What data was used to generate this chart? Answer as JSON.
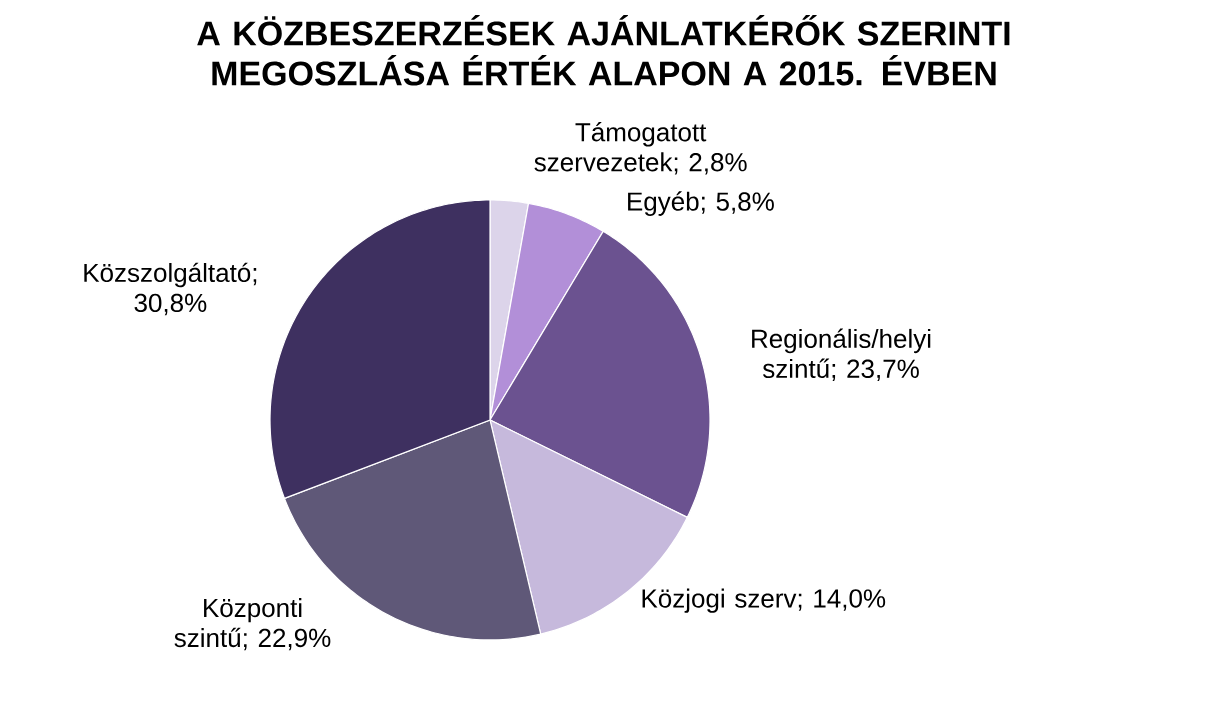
{
  "chart_data": {
    "type": "pie",
    "title": "A KÖZBESZERZÉSEK AJÁNLATKÉRŐK SZERINTI MEGOSZLÁSA ÉRTÉK ALAPON A 2015. ÉVBEN",
    "categories": [
      "Támogatott szervezetek; 2,8%",
      "Egyéb; 5,8%",
      "Regionális/helyi szintű; 23,7%",
      "Közjogi szerv; 14,0%",
      "Központi szintű; 22,9%",
      "Közszolgáltató; 30,8%"
    ],
    "values": [
      2.8,
      5.8,
      23.7,
      14.0,
      22.9,
      30.8
    ],
    "colors": [
      "#dcd4ea",
      "#b28fd8",
      "#6b5290",
      "#c6b9dc",
      "#5f5878",
      "#3e3060"
    ]
  }
}
